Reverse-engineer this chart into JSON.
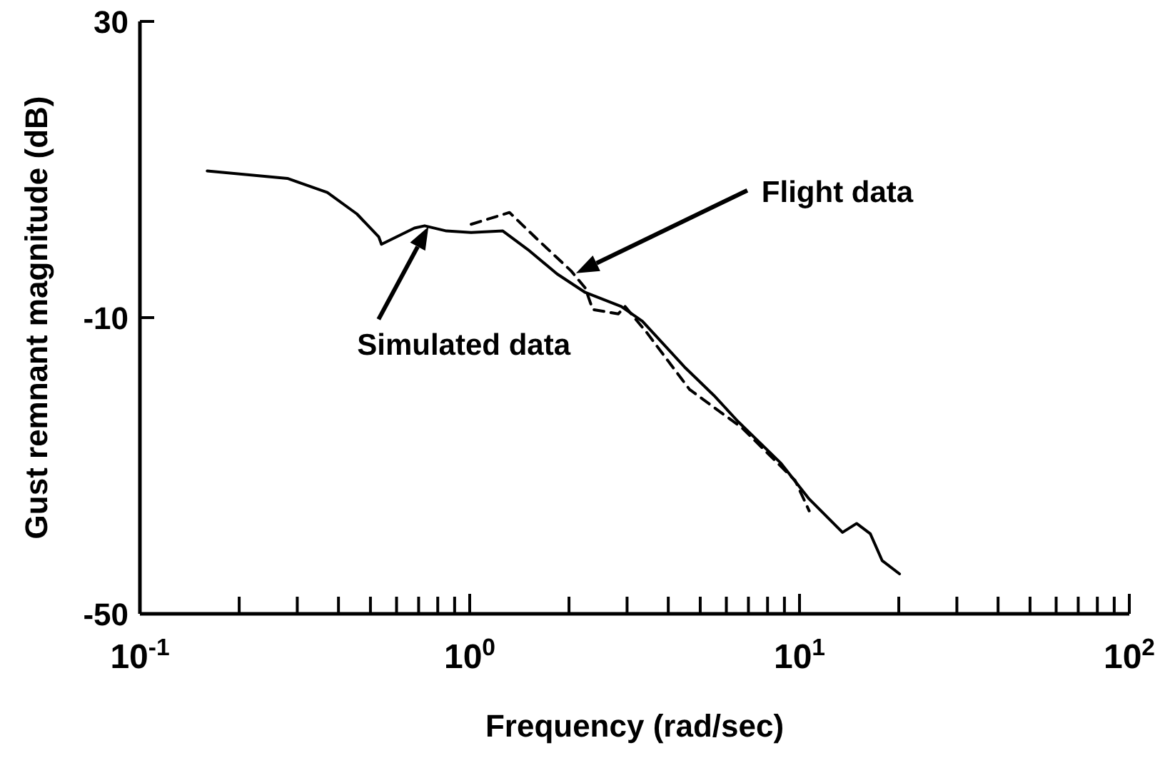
{
  "chart_data": {
    "type": "line",
    "xlabel": "Frequency (rad/sec)",
    "ylabel": "Gust remnant magnitude (dB)",
    "log": "x",
    "xlim": [
      0.1,
      100
    ],
    "ylim": [
      -50,
      30
    ],
    "xticks": [
      {
        "value": 0.1,
        "label": "10$^{-1}$"
      },
      {
        "value": 0.2,
        "label": null
      },
      {
        "value": 0.3,
        "label": null
      },
      {
        "value": 0.4,
        "label": null
      },
      {
        "value": 0.5,
        "label": null
      },
      {
        "value": 0.6,
        "label": null
      },
      {
        "value": 0.7,
        "label": null
      },
      {
        "value": 0.8,
        "label": null
      },
      {
        "value": 0.9,
        "label": null
      },
      {
        "value": 1,
        "label": "10$^{0}$"
      },
      {
        "value": 2,
        "label": null
      },
      {
        "value": 3,
        "label": null
      },
      {
        "value": 4,
        "label": null
      },
      {
        "value": 5,
        "label": null
      },
      {
        "value": 6,
        "label": null
      },
      {
        "value": 7,
        "label": null
      },
      {
        "value": 8,
        "label": null
      },
      {
        "value": 9,
        "label": null
      },
      {
        "value": 10,
        "label": "10$^{1}$"
      },
      {
        "value": 20,
        "label": null
      },
      {
        "value": 30,
        "label": null
      },
      {
        "value": 40,
        "label": null
      },
      {
        "value": 50,
        "label": null
      },
      {
        "value": 60,
        "label": null
      },
      {
        "value": 70,
        "label": null
      },
      {
        "value": 80,
        "label": null
      },
      {
        "value": 90,
        "label": null
      },
      {
        "value": 100,
        "label": "10$^{2}$"
      }
    ],
    "yticks": [
      -50,
      -10,
      30
    ],
    "grid": false,
    "series": [
      {
        "color": "#000000",
        "line_style": "solid",
        "x": [
          0.16,
          0.28,
          0.37,
          0.455,
          0.53,
          0.54,
          0.68,
          0.73,
          0.85,
          1.01,
          1.26,
          1.5,
          1.84,
          2.24,
          2.88,
          3.34,
          4.51,
          5.5,
          6.5,
          8.8,
          10.7,
          13.5,
          14.9,
          16.4,
          17.8,
          20.1
        ],
        "values": [
          9.8,
          8.8,
          6.9,
          4.0,
          0.9,
          -0.1,
          2.1,
          2.4,
          1.7,
          1.5,
          1.7,
          -0.8,
          -4.1,
          -6.6,
          -8.5,
          -10.5,
          -16.8,
          -20.5,
          -24,
          -29.7,
          -34.5,
          -39,
          -37.8,
          -39.2,
          -42.8,
          -44.6
        ]
      },
      {
        "color": "#000000",
        "line_style": "dashed",
        "x": [
          1.01,
          1.32,
          1.61,
          2.03,
          2.24,
          2.36,
          2.82,
          2.96,
          3.44,
          4.64,
          6.7,
          9.7,
          10.7
        ],
        "values": [
          2.6,
          4.2,
          0.5,
          -3.7,
          -6.0,
          -8.9,
          -9.5,
          -8.5,
          -12,
          -19.7,
          -24.9,
          -32,
          -36.1
        ]
      }
    ],
    "annotations": [
      "Flight data",
      "Simulated data"
    ]
  }
}
